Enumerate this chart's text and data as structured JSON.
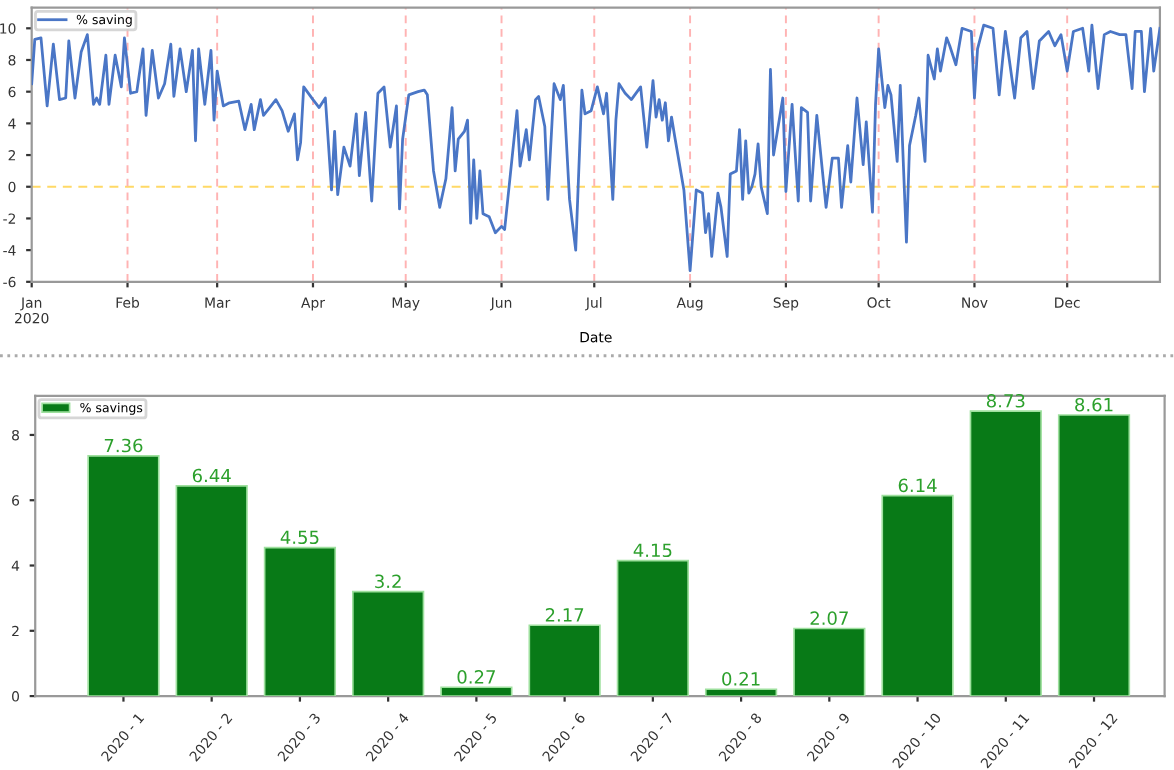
{
  "chart_data": [
    {
      "type": "line",
      "xlabel": "Date",
      "legend": "top left",
      "grid": false,
      "marker": "none",
      "line_style": "solid",
      "xlim": [
        "2020-01-01",
        "2020-12-31"
      ],
      "ylim": [
        -6,
        11.3
      ],
      "yticks": [
        -6,
        -4,
        -2,
        0,
        2,
        4,
        6,
        8,
        10
      ],
      "xticks": [
        {
          "value": "2020-01-01",
          "label": "Jan\n2020"
        },
        {
          "value": "2020-02-01",
          "label": "Feb"
        },
        {
          "value": "2020-03-01",
          "label": "Mar"
        },
        {
          "value": "2020-04-01",
          "label": "Apr"
        },
        {
          "value": "2020-05-01",
          "label": "May"
        },
        {
          "value": "2020-06-01",
          "label": "Jun"
        },
        {
          "value": "2020-07-01",
          "label": "Jul"
        },
        {
          "value": "2020-08-01",
          "label": "Aug"
        },
        {
          "value": "2020-09-01",
          "label": "Sep"
        },
        {
          "value": "2020-10-01",
          "label": "Oct"
        },
        {
          "value": "2020-11-01",
          "label": "Nov"
        },
        {
          "value": "2020-12-01",
          "label": "Dec"
        }
      ],
      "ref_lines": [
        {
          "axis": "y",
          "value": 0,
          "color": "#ffd966",
          "line_style": "dashed"
        },
        {
          "axis": "x",
          "value": "2020-02-01",
          "color": "#ffb3b3",
          "line_style": "dashed"
        },
        {
          "axis": "x",
          "value": "2020-03-01",
          "color": "#ffb3b3",
          "line_style": "dashed"
        },
        {
          "axis": "x",
          "value": "2020-04-01",
          "color": "#ffb3b3",
          "line_style": "dashed"
        },
        {
          "axis": "x",
          "value": "2020-05-01",
          "color": "#ffb3b3",
          "line_style": "dashed"
        },
        {
          "axis": "x",
          "value": "2020-06-01",
          "color": "#ffb3b3",
          "line_style": "dashed"
        },
        {
          "axis": "x",
          "value": "2020-07-01",
          "color": "#ffb3b3",
          "line_style": "dashed"
        },
        {
          "axis": "x",
          "value": "2020-08-01",
          "color": "#ffb3b3",
          "line_style": "dashed"
        },
        {
          "axis": "x",
          "value": "2020-09-01",
          "color": "#ffb3b3",
          "line_style": "dashed"
        },
        {
          "axis": "x",
          "value": "2020-10-01",
          "color": "#ffb3b3",
          "line_style": "dashed"
        },
        {
          "axis": "x",
          "value": "2020-11-01",
          "color": "#ffb3b3",
          "line_style": "dashed"
        },
        {
          "axis": "x",
          "value": "2020-12-01",
          "color": "#ffb3b3",
          "line_style": "dashed"
        }
      ],
      "series": [
        {
          "name": "% saving",
          "color": "#4a76c6",
          "x": [
            "2020-01-01",
            "2020-01-02",
            "2020-01-04",
            "2020-01-06",
            "2020-01-08",
            "2020-01-10",
            "2020-01-12",
            "2020-01-13",
            "2020-01-15",
            "2020-01-17",
            "2020-01-19",
            "2020-01-21",
            "2020-01-22",
            "2020-01-23",
            "2020-01-25",
            "2020-01-26",
            "2020-01-28",
            "2020-01-30",
            "2020-01-31",
            "2020-02-02",
            "2020-02-04",
            "2020-02-06",
            "2020-02-07",
            "2020-02-09",
            "2020-02-11",
            "2020-02-13",
            "2020-02-15",
            "2020-02-16",
            "2020-02-18",
            "2020-02-20",
            "2020-02-22",
            "2020-02-23",
            "2020-02-24",
            "2020-02-26",
            "2020-02-28",
            "2020-02-29",
            "2020-03-01",
            "2020-03-03",
            "2020-03-05",
            "2020-03-08",
            "2020-03-10",
            "2020-03-12",
            "2020-03-13",
            "2020-03-15",
            "2020-03-16",
            "2020-03-18",
            "2020-03-20",
            "2020-03-22",
            "2020-03-24",
            "2020-03-26",
            "2020-03-27",
            "2020-03-28",
            "2020-03-29",
            "2020-04-01",
            "2020-04-03",
            "2020-04-05",
            "2020-04-07",
            "2020-04-08",
            "2020-04-09",
            "2020-04-11",
            "2020-04-13",
            "2020-04-15",
            "2020-04-16",
            "2020-04-18",
            "2020-04-20",
            "2020-04-22",
            "2020-04-24",
            "2020-04-26",
            "2020-04-28",
            "2020-04-29",
            "2020-04-30",
            "2020-05-02",
            "2020-05-05",
            "2020-05-07",
            "2020-05-08",
            "2020-05-10",
            "2020-05-12",
            "2020-05-14",
            "2020-05-16",
            "2020-05-17",
            "2020-05-18",
            "2020-05-20",
            "2020-05-21",
            "2020-05-22",
            "2020-05-23",
            "2020-05-24",
            "2020-05-25",
            "2020-05-26",
            "2020-05-28",
            "2020-05-30",
            "2020-06-01",
            "2020-06-02",
            "2020-06-06",
            "2020-06-07",
            "2020-06-09",
            "2020-06-10",
            "2020-06-12",
            "2020-06-13",
            "2020-06-15",
            "2020-06-16",
            "2020-06-18",
            "2020-06-20",
            "2020-06-21",
            "2020-06-23",
            "2020-06-25",
            "2020-06-27",
            "2020-06-28",
            "2020-06-30",
            "2020-07-02",
            "2020-07-04",
            "2020-07-05",
            "2020-07-07",
            "2020-07-08",
            "2020-07-09",
            "2020-07-11",
            "2020-07-13",
            "2020-07-16",
            "2020-07-18",
            "2020-07-20",
            "2020-07-21",
            "2020-07-22",
            "2020-07-23",
            "2020-07-24",
            "2020-07-25",
            "2020-07-26",
            "2020-07-27",
            "2020-07-30",
            "2020-08-01",
            "2020-08-03",
            "2020-08-05",
            "2020-08-06",
            "2020-08-07",
            "2020-08-08",
            "2020-08-10",
            "2020-08-11",
            "2020-08-13",
            "2020-08-14",
            "2020-08-16",
            "2020-08-17",
            "2020-08-18",
            "2020-08-19",
            "2020-08-20",
            "2020-08-21",
            "2020-08-22",
            "2020-08-23",
            "2020-08-24",
            "2020-08-26",
            "2020-08-27",
            "2020-08-28",
            "2020-08-31",
            "2020-09-01",
            "2020-09-03",
            "2020-09-05",
            "2020-09-06",
            "2020-09-08",
            "2020-09-09",
            "2020-09-11",
            "2020-09-14",
            "2020-09-16",
            "2020-09-18",
            "2020-09-19",
            "2020-09-21",
            "2020-09-22",
            "2020-09-24",
            "2020-09-26",
            "2020-09-27",
            "2020-09-29",
            "2020-09-30",
            "2020-10-01",
            "2020-10-03",
            "2020-10-04",
            "2020-10-05",
            "2020-10-07",
            "2020-10-08",
            "2020-10-10",
            "2020-10-11",
            "2020-10-13",
            "2020-10-14",
            "2020-10-16",
            "2020-10-17",
            "2020-10-19",
            "2020-10-20",
            "2020-10-21",
            "2020-10-23",
            "2020-10-24",
            "2020-10-26",
            "2020-10-28",
            "2020-10-31",
            "2020-11-01",
            "2020-11-02",
            "2020-11-04",
            "2020-11-07",
            "2020-11-09",
            "2020-11-11",
            "2020-11-14",
            "2020-11-16",
            "2020-11-18",
            "2020-11-20",
            "2020-11-22",
            "2020-11-25",
            "2020-11-27",
            "2020-11-29",
            "2020-12-01",
            "2020-12-03",
            "2020-12-06",
            "2020-12-08",
            "2020-12-09",
            "2020-12-11",
            "2020-12-13",
            "2020-12-15",
            "2020-12-18",
            "2020-12-20",
            "2020-12-22",
            "2020-12-23",
            "2020-12-25",
            "2020-12-26",
            "2020-12-28",
            "2020-12-29",
            "2020-12-31"
          ],
          "values": [
            6.5,
            9.3,
            9.4,
            5.1,
            9.0,
            5.5,
            5.6,
            9.2,
            5.6,
            8.5,
            9.6,
            5.2,
            5.6,
            5.2,
            8.3,
            5.2,
            8.3,
            6.3,
            9.4,
            5.9,
            6.0,
            8.7,
            4.5,
            8.6,
            5.6,
            6.5,
            9.0,
            5.7,
            8.7,
            6.0,
            8.6,
            2.9,
            8.7,
            5.2,
            8.6,
            4.2,
            7.3,
            5.1,
            5.3,
            5.4,
            3.6,
            5.2,
            3.6,
            5.5,
            4.5,
            5.0,
            5.5,
            4.8,
            3.5,
            4.6,
            1.7,
            2.8,
            6.3,
            5.5,
            5.0,
            5.6,
            -0.2,
            3.5,
            -0.5,
            2.5,
            1.3,
            4.6,
            0.7,
            4.7,
            -0.9,
            5.9,
            6.3,
            2.5,
            5.1,
            -1.4,
            3.0,
            5.8,
            6.0,
            6.1,
            5.8,
            1.0,
            -1.3,
            0.5,
            5.0,
            1.0,
            3.0,
            3.5,
            4.2,
            -2.3,
            1.7,
            -2.0,
            1.0,
            -1.7,
            -1.9,
            -2.9,
            -2.5,
            -2.7,
            4.8,
            1.3,
            3.6,
            1.7,
            5.5,
            5.7,
            3.8,
            -0.8,
            6.5,
            5.5,
            6.4,
            -0.8,
            -4.0,
            6.1,
            4.6,
            4.8,
            6.3,
            4.6,
            5.9,
            -0.8,
            4.2,
            6.5,
            5.9,
            5.5,
            6.3,
            2.5,
            6.7,
            4.4,
            5.5,
            4.2,
            5.3,
            2.9,
            4.4,
            3.2,
            -0.2,
            -5.3,
            -0.2,
            -0.4,
            -2.9,
            -1.7,
            -4.4,
            -0.4,
            -1.3,
            -4.4,
            0.8,
            1.0,
            3.6,
            -0.8,
            2.9,
            -0.4,
            0.0,
            0.8,
            2.7,
            0.0,
            -1.7,
            7.4,
            2.0,
            5.6,
            -0.3,
            5.2,
            -0.9,
            5.0,
            4.7,
            -0.9,
            4.5,
            -1.3,
            1.8,
            1.8,
            -1.3,
            2.6,
            0.3,
            5.6,
            1.4,
            4.1,
            -1.6,
            5.2,
            8.7,
            5.0,
            6.4,
            5.8,
            1.6,
            6.4,
            -3.5,
            2.6,
            4.5,
            5.6,
            1.6,
            8.3,
            6.8,
            8.7,
            7.3,
            9.4,
            8.9,
            7.7,
            10.0,
            9.8,
            5.6,
            8.7,
            10.2,
            10.0,
            5.8,
            9.8,
            5.6,
            9.4,
            9.8,
            6.2,
            9.2,
            9.8,
            8.9,
            9.6,
            7.3,
            9.8,
            10.0,
            7.3,
            10.2,
            6.2,
            9.6,
            9.8,
            9.6,
            9.6,
            6.2,
            9.8,
            9.8,
            6.0,
            10.0,
            7.3,
            10.0
          ]
        }
      ]
    },
    {
      "type": "bar",
      "legend": "top left",
      "grid": false,
      "data_labels": true,
      "categories": [
        "2020 - 1",
        "2020 - 2",
        "2020 - 3",
        "2020 - 4",
        "2020 - 5",
        "2020 - 6",
        "2020 - 7",
        "2020 - 8",
        "2020 - 9",
        "2020 - 10",
        "2020 - 11",
        "2020 - 12"
      ],
      "ylim": [
        0,
        9.2
      ],
      "yticks": [
        0,
        2,
        4,
        6,
        8
      ],
      "series": [
        {
          "name": "% savings",
          "color": "#087a17",
          "values": [
            7.36,
            6.44,
            4.55,
            3.2,
            0.27,
            2.17,
            4.15,
            0.21,
            2.07,
            6.14,
            8.73,
            8.61
          ]
        }
      ]
    }
  ]
}
